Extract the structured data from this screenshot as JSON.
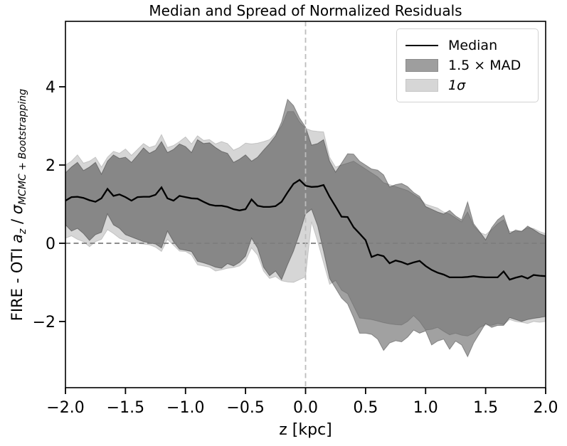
{
  "title": "Median and Spread of Normalized Residuals",
  "axes": {
    "x": {
      "label": "z [kpc]",
      "min": -2.0,
      "max": 2.0,
      "ticks": [
        {
          "v": -2.0,
          "label": "−2.0"
        },
        {
          "v": -1.5,
          "label": "−1.5"
        },
        {
          "v": -1.0,
          "label": "−1.0"
        },
        {
          "v": -0.5,
          "label": "−0.5"
        },
        {
          "v": 0.0,
          "label": "0.0"
        },
        {
          "v": 0.5,
          "label": "0.5"
        },
        {
          "v": 1.0,
          "label": "1.0"
        },
        {
          "v": 1.5,
          "label": "1.5"
        },
        {
          "v": 2.0,
          "label": "2.0"
        }
      ]
    },
    "y": {
      "label_parts": {
        "prefix": "FIRE - OTI ",
        "var_a": "a",
        "sub_a": "z",
        "divider": " / ",
        "sigma": "σ",
        "sub_sigma": "MCMC + Bootstrapping"
      },
      "ticks": [
        {
          "v": -2,
          "label": "−2"
        },
        {
          "v": 0,
          "label": "0"
        },
        {
          "v": 2,
          "label": "2"
        },
        {
          "v": 4,
          "label": "4"
        }
      ]
    }
  },
  "legend": {
    "items": [
      {
        "label": "Median",
        "type": "line"
      },
      {
        "label": "1.5 × MAD",
        "type": "patch"
      },
      {
        "label": "1σ",
        "type": "patch"
      }
    ]
  },
  "colors": {
    "median": "#000000",
    "mad_fill": "rgba(0,0,0,0.37)",
    "mad_edge": "rgba(0,0,0,0.32)",
    "sigma_fill": "rgba(0,0,0,0.16)",
    "sigma_edge": "rgba(0,0,0,0.15)",
    "hline": "#7d7d7d",
    "vline": "#bdbdbd",
    "spine": "#000000",
    "mad_swatch": "#9e9e9e",
    "mad_swatch_border": "#8a8a8a",
    "sigma_swatch": "#d6d6d6",
    "sigma_swatch_border": "#c6c6c6"
  },
  "chart_data": {
    "type": "line",
    "title": "Median and Spread of Normalized Residuals",
    "xlabel": "z [kpc]",
    "ylabel": "FIRE - OTI a_z / σ_(MCMC + Bootstrapping)",
    "xlim": [
      -2.0,
      2.0
    ],
    "ylim": [
      -3.69,
      5.67
    ],
    "grid": false,
    "legend_position": "upper right",
    "reference_lines": {
      "vline_x": 0.0,
      "hline_y": 0.0
    },
    "x_step": 0.05,
    "x": [
      -2,
      -1.95,
      -1.9,
      -1.85,
      -1.8,
      -1.75,
      -1.7,
      -1.65,
      -1.6,
      -1.55,
      -1.5,
      -1.45,
      -1.4,
      -1.35,
      -1.3,
      -1.25,
      -1.2,
      -1.15,
      -1.1,
      -1.05,
      -1,
      -0.95,
      -0.9,
      -0.85,
      -0.8,
      -0.75,
      -0.7,
      -0.65,
      -0.6,
      -0.55,
      -0.5,
      -0.45,
      -0.4,
      -0.35,
      -0.3,
      -0.25,
      -0.2,
      -0.15,
      -0.1,
      -0.05,
      0,
      0.05,
      0.1,
      0.15,
      0.2,
      0.25,
      0.3,
      0.35,
      0.4,
      0.45,
      0.5,
      0.55,
      0.6,
      0.65,
      0.7,
      0.75,
      0.8,
      0.85,
      0.9,
      0.95,
      1,
      1.05,
      1.1,
      1.15,
      1.2,
      1.25,
      1.3,
      1.35,
      1.4,
      1.45,
      1.5,
      1.55,
      1.6,
      1.65,
      1.7,
      1.75,
      1.8,
      1.85,
      1.9,
      1.95,
      2
    ],
    "series": [
      {
        "name": "Median",
        "type": "line",
        "color": "#000000",
        "values": [
          1.09,
          1.18,
          1.19,
          1.16,
          1.1,
          1.06,
          1.15,
          1.39,
          1.21,
          1.25,
          1.18,
          1.09,
          1.18,
          1.19,
          1.19,
          1.24,
          1.43,
          1.15,
          1.09,
          1.21,
          1.18,
          1.15,
          1.14,
          1.06,
          0.99,
          0.96,
          0.96,
          0.93,
          0.87,
          0.84,
          0.87,
          1.12,
          0.96,
          0.93,
          0.93,
          0.95,
          1.06,
          1.3,
          1.52,
          1.62,
          1.47,
          1.44,
          1.45,
          1.49,
          1.19,
          0.94,
          0.68,
          0.67,
          0.41,
          0.25,
          0.08,
          -0.35,
          -0.29,
          -0.33,
          -0.51,
          -0.44,
          -0.48,
          -0.54,
          -0.49,
          -0.45,
          -0.58,
          -0.68,
          -0.75,
          -0.8,
          -0.87,
          -0.87,
          -0.87,
          -0.86,
          -0.84,
          -0.86,
          -0.87,
          -0.87,
          -0.87,
          -0.72,
          -0.93,
          -0.88,
          -0.84,
          -0.9,
          -0.81,
          -0.83,
          -0.84
        ]
      },
      {
        "name": "1.5 × MAD",
        "type": "band",
        "hi": [
          1.8,
          1.95,
          2.07,
          1.86,
          1.95,
          2.07,
          1.77,
          2.1,
          2.26,
          2.17,
          2.2,
          2.07,
          2.25,
          2.44,
          2.3,
          2.38,
          2.6,
          2.32,
          2.4,
          2.54,
          2.47,
          2.32,
          2.65,
          2.55,
          2.57,
          2.45,
          2.35,
          2.3,
          2.07,
          2.15,
          2.26,
          2.1,
          2.2,
          2.38,
          2.55,
          2.75,
          3.1,
          3.68,
          3.52,
          3.2,
          2.97,
          2.51,
          2.55,
          2.65,
          2.1,
          1.82,
          2.05,
          2.29,
          2.28,
          2.1,
          2.0,
          1.9,
          1.87,
          1.75,
          1.44,
          1.5,
          1.53,
          1.45,
          1.3,
          1.2,
          0.94,
          0.87,
          0.8,
          0.75,
          0.84,
          0.7,
          0.6,
          1.06,
          0.5,
          0.3,
          0.09,
          0.4,
          0.6,
          0.72,
          0.25,
          0.34,
          0.3,
          0.44,
          0.35,
          0.25,
          0.19
        ],
        "lo": [
          0.47,
          0.31,
          0.38,
          0.25,
          0.07,
          0.22,
          0.28,
          0.75,
          0.47,
          0.38,
          0.22,
          0.16,
          0.1,
          0.04,
          0.01,
          -0.02,
          -0.12,
          0.31,
          0.04,
          -0.15,
          -0.18,
          -0.21,
          -0.46,
          -0.5,
          -0.55,
          -0.61,
          -0.64,
          -0.52,
          -0.58,
          -0.49,
          -0.33,
          0.13,
          -0.12,
          -0.61,
          -0.83,
          -0.71,
          -0.93,
          -0.55,
          -0.2,
          0.25,
          0.75,
          0.87,
          0.45,
          -0.2,
          -0.9,
          -1.15,
          -1.4,
          -1.55,
          -1.9,
          -2.3,
          -2.3,
          -2.33,
          -2.45,
          -2.74,
          -2.55,
          -2.49,
          -2.52,
          -2.4,
          -2.22,
          -2.3,
          -2.24,
          -2.6,
          -2.5,
          -2.45,
          -2.71,
          -2.5,
          -2.6,
          -2.9,
          -2.55,
          -2.3,
          -2.05,
          -2.15,
          -2.1,
          -2.1,
          -1.9,
          -1.95,
          -2.0,
          -1.95,
          -1.92,
          -1.9,
          -1.87
        ]
      },
      {
        "name": "1σ",
        "type": "band",
        "hi": [
          2.0,
          2.1,
          2.26,
          2.05,
          2.1,
          2.2,
          1.95,
          2.2,
          2.35,
          2.3,
          2.41,
          2.25,
          2.4,
          2.55,
          2.45,
          2.5,
          2.78,
          2.45,
          2.5,
          2.6,
          2.72,
          2.54,
          2.75,
          2.63,
          2.65,
          2.54,
          2.6,
          2.55,
          2.38,
          2.45,
          2.56,
          2.54,
          2.56,
          2.6,
          2.65,
          2.8,
          3.0,
          3.37,
          3.37,
          3.1,
          2.94,
          2.88,
          2.86,
          2.85,
          2.2,
          1.95,
          2.0,
          2.05,
          2.1,
          2.0,
          1.9,
          1.8,
          1.7,
          1.55,
          1.5,
          1.45,
          1.4,
          1.35,
          1.25,
          1.15,
          1.0,
          0.95,
          0.9,
          0.8,
          0.75,
          0.65,
          0.55,
          0.8,
          0.45,
          0.28,
          0.22,
          0.35,
          0.5,
          0.6,
          0.3,
          0.3,
          0.32,
          0.4,
          0.38,
          0.3,
          0.25
        ],
        "lo": [
          0.13,
          0.19,
          0.1,
          0.04,
          -0.09,
          0.04,
          0.1,
          0.35,
          0.25,
          0.13,
          0.07,
          0.02,
          0.0,
          -0.02,
          -0.04,
          -0.1,
          -0.21,
          0.1,
          -0.05,
          -0.2,
          -0.21,
          -0.3,
          -0.55,
          -0.58,
          -0.61,
          -0.71,
          -0.68,
          -0.64,
          -0.62,
          -0.58,
          -0.45,
          -0.12,
          -0.3,
          -0.71,
          -0.9,
          -0.85,
          -0.96,
          -0.99,
          -1.0,
          -0.93,
          -0.86,
          0.55,
          0.05,
          -0.5,
          -1.05,
          -0.95,
          -1.2,
          -1.29,
          -1.6,
          -1.91,
          -1.93,
          -1.95,
          -1.99,
          -2.03,
          -2.06,
          -2.08,
          -2.09,
          -2.0,
          -1.85,
          -2.0,
          -2.22,
          -2.2,
          -2.15,
          -2.25,
          -2.34,
          -2.3,
          -2.35,
          -2.37,
          -2.3,
          -2.15,
          -2.09,
          -2.1,
          -2.05,
          -2.08,
          -1.95,
          -2.0,
          -2.02,
          -2.05,
          -2.0,
          -2.02,
          -2.0
        ]
      }
    ]
  }
}
